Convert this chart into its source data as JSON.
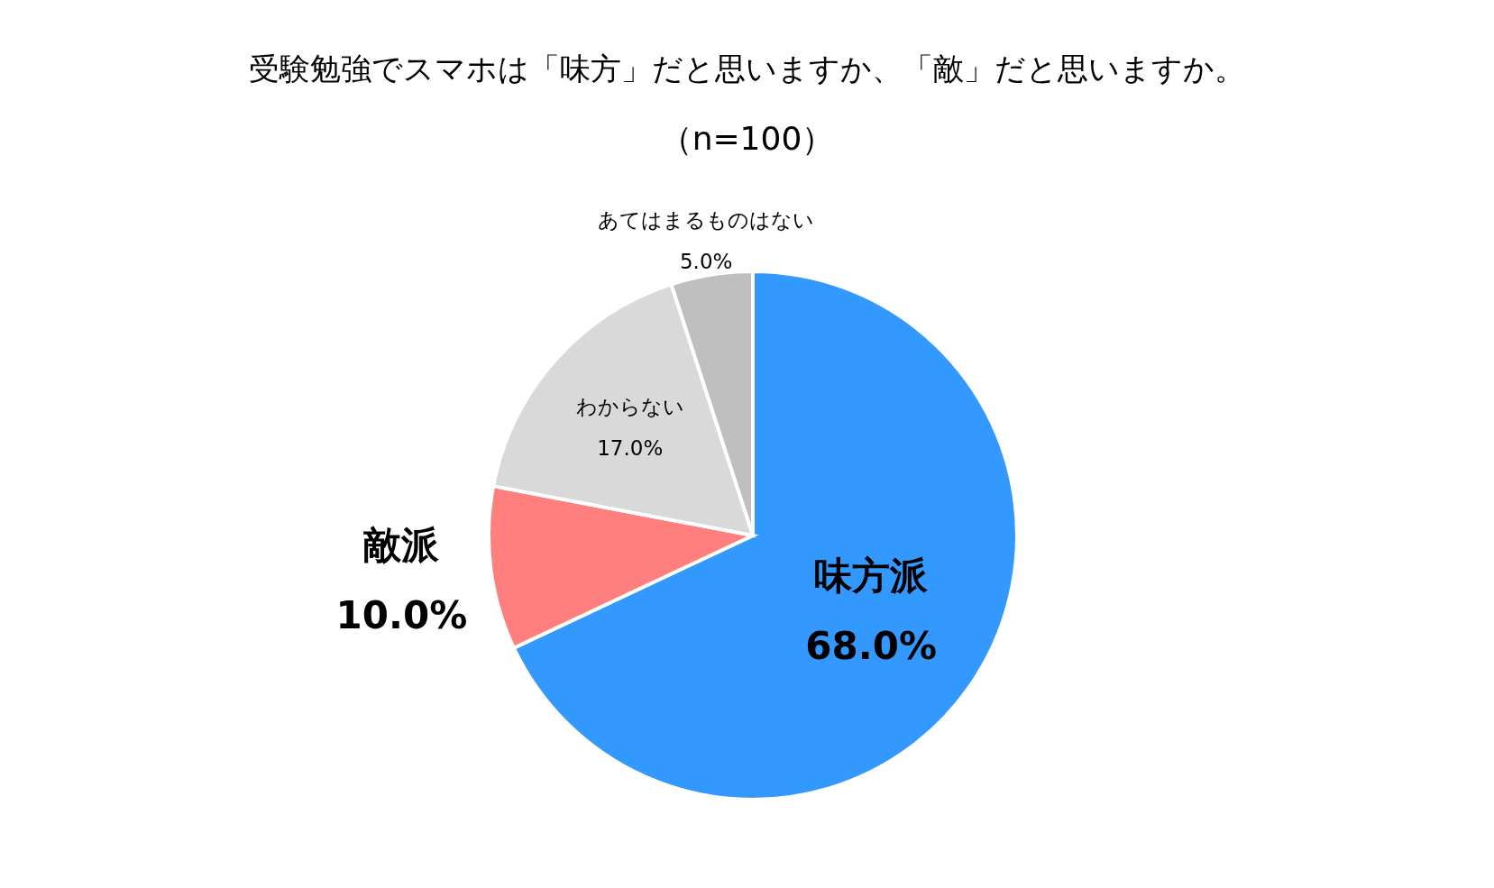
{
  "chart_data": {
    "type": "pie",
    "title": "受験勉強でスマホは「味方」だと思いますか、「敵」だと思いますか。",
    "subtitle": "（n=100）",
    "categories": [
      "味方派",
      "敵派",
      "わからない",
      "あてはまるものはない"
    ],
    "values": [
      68.0,
      10.0,
      17.0,
      5.0
    ],
    "colors": [
      "#3399ff",
      "#ff7f7f",
      "#d9d9d9",
      "#bfbfbf"
    ],
    "value_labels": [
      "68.0%",
      "10.0%",
      "17.0%",
      "5.0%"
    ],
    "legend": false
  }
}
